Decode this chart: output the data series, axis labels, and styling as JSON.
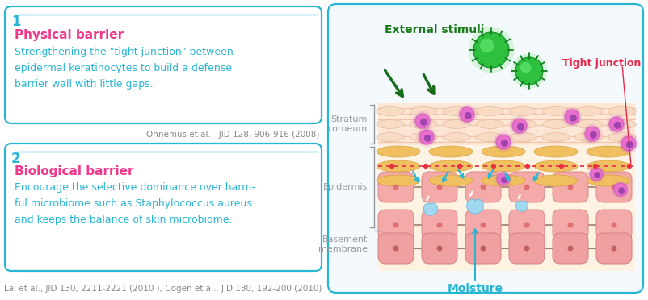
{
  "bg_color": "#ffffff",
  "panel_border_color": "#29b6d5",
  "panel_bg": "#ffffff",
  "right_panel_bg": "#f4f9fd",
  "num1_color": "#29b6d5",
  "num2_color": "#29b6d5",
  "title1_color": "#f0388c",
  "title2_color": "#f0388c",
  "body_color": "#29b6d5",
  "ref_color": "#888888",
  "title1": "Physical barrier",
  "body1": "Strengthening the \"tight junction\" between\nepidermal keratinocytes to build a defense\nbarrier wall with little gaps.",
  "ref1": "Ohnemus et al.,  JID 128, 906-916 (2008)",
  "title2": "Biological barrier",
  "body2": "Encourage the selective dominance over harm-\nful microbiome such as Staphylococcus aureus\nand keeps the balance of skin microbiome.",
  "ref2": "Lai et al., JID 130, 2211-2221 (2010 ), Cogen et al., JID 130, 192-200 (2010)",
  "label_stratum": "Stratum\ncorneum",
  "label_epidermis": "Epidermis",
  "label_basement": "Basement\nmembrane",
  "label_moisture": "Moisture",
  "label_tight": "Tight junction",
  "label_external": "External stimuli",
  "label_color_gray": "#999999",
  "label_color_green": "#1a7a1a",
  "label_color_cyan": "#29b6d5",
  "label_color_red": "#e8294a",
  "skin_bg": "#fef3e2",
  "arrow_blue": "#29b6d5",
  "arrow_green": "#1a6b1a"
}
